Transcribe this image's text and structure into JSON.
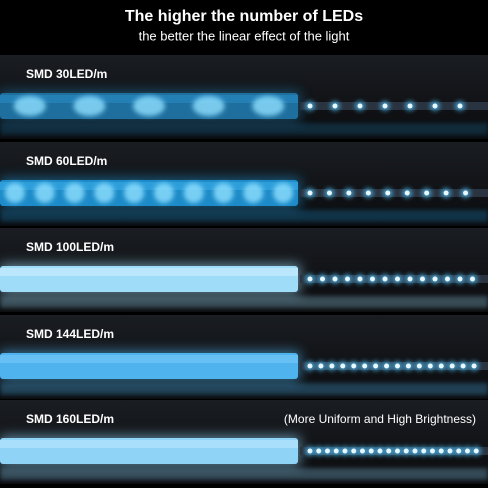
{
  "header": {
    "title": "The higher the number of LEDs",
    "subtitle": "the better the linear effect of the light"
  },
  "rows": [
    {
      "label": "SMD 30LED/m"
    },
    {
      "label": "SMD 60LED/m"
    },
    {
      "label": "SMD 100LED/m"
    },
    {
      "label": "SMD 144LED/m"
    },
    {
      "label": "SMD 160LED/m"
    }
  ],
  "note": "(More Uniform and High Brightness)"
}
